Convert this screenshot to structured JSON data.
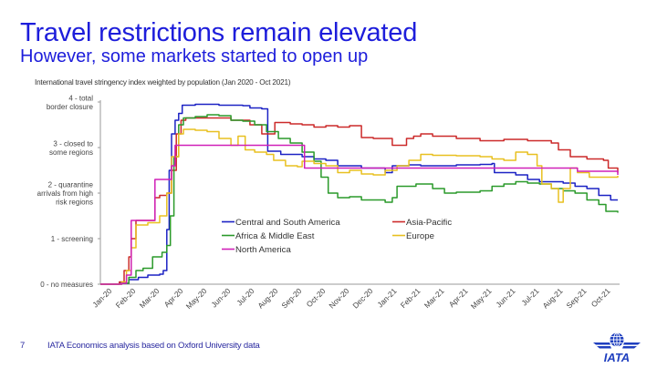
{
  "slide": {
    "title": "Travel restrictions remain elevated",
    "subtitle": "However, some markets started to open up",
    "page_number": "7",
    "source": "IATA Economics analysis based on Oxford University data",
    "logo_text": "IATA",
    "title_color": "#1d1ddb"
  },
  "chart_data": {
    "type": "line",
    "title": "International travel stringency index weighted by population (Jan 2020 - Oct 2021)",
    "xlabel": "",
    "ylabel": "",
    "ylim": [
      0,
      4
    ],
    "grid": false,
    "legend_position": "center",
    "y_ticks": [
      {
        "value": 4,
        "lines": [
          "4 - total",
          "border closure"
        ]
      },
      {
        "value": 3,
        "lines": [
          "3 - closed to",
          "some regions"
        ]
      },
      {
        "value": 2,
        "lines": [
          "2 - quarantine",
          "arrivals from high",
          "risk regions"
        ]
      },
      {
        "value": 1,
        "lines": [
          "1 - screening"
        ]
      },
      {
        "value": 0,
        "lines": [
          "0 - no measures"
        ]
      }
    ],
    "x_tick_labels": [
      "Jan-20",
      "Feb-20",
      "Mar-20",
      "Apr-20",
      "May-20",
      "Jun-20",
      "Jul-20",
      "Aug-20",
      "Sep-20",
      "Oct-20",
      "Nov-20",
      "Dec-20",
      "Jan-21",
      "Feb-21",
      "Mar-21",
      "Apr-21",
      "May-21",
      "Jun-21",
      "Jul-21",
      "Aug-21",
      "Sep-21",
      "Oct-21"
    ],
    "x_unit": "months since Jan 2020",
    "xlim": [
      0,
      21.8
    ],
    "series": [
      {
        "name": "Central and South America",
        "color": "#1c22c4",
        "points": [
          [
            0,
            0
          ],
          [
            0.8,
            0.02
          ],
          [
            1.2,
            0.1
          ],
          [
            1.6,
            0.15
          ],
          [
            2,
            0.2
          ],
          [
            2.5,
            0.22
          ],
          [
            2.65,
            0.3
          ],
          [
            2.8,
            1.2
          ],
          [
            2.9,
            2.5
          ],
          [
            3.0,
            3.3
          ],
          [
            3.15,
            3.6
          ],
          [
            3.3,
            3.75
          ],
          [
            3.45,
            3.93
          ],
          [
            4,
            3.95
          ],
          [
            5,
            3.93
          ],
          [
            6,
            3.92
          ],
          [
            6.3,
            3.87
          ],
          [
            6.8,
            3.85
          ],
          [
            7.0,
            3.85
          ],
          [
            7.05,
            2.92
          ],
          [
            7.5,
            2.92
          ],
          [
            7.6,
            2.85
          ],
          [
            8.5,
            2.8
          ],
          [
            9.0,
            2.75
          ],
          [
            9.5,
            2.72
          ],
          [
            10,
            2.6
          ],
          [
            11,
            2.55
          ],
          [
            12,
            2.45
          ],
          [
            12.3,
            2.6
          ],
          [
            13,
            2.62
          ],
          [
            13.5,
            2.6
          ],
          [
            14,
            2.6
          ],
          [
            15,
            2.62
          ],
          [
            16,
            2.63
          ],
          [
            16.5,
            2.65
          ],
          [
            16.6,
            2.45
          ],
          [
            17,
            2.45
          ],
          [
            17.5,
            2.4
          ],
          [
            18,
            2.3
          ],
          [
            18.5,
            2.25
          ],
          [
            19,
            2.25
          ],
          [
            19.5,
            2.22
          ],
          [
            20,
            2.15
          ],
          [
            20.5,
            2.1
          ],
          [
            21,
            1.95
          ],
          [
            21.5,
            1.85
          ],
          [
            21.8,
            1.85
          ]
        ]
      },
      {
        "name": "Asia-Pacific",
        "color": "#cc2a2a",
        "points": [
          [
            0,
            0
          ],
          [
            0.8,
            0.05
          ],
          [
            1.0,
            0.3
          ],
          [
            1.2,
            0.6
          ],
          [
            1.3,
            1.0
          ],
          [
            1.5,
            1.4
          ],
          [
            2.0,
            1.4
          ],
          [
            2.3,
            1.9
          ],
          [
            2.5,
            1.95
          ],
          [
            2.8,
            2.0
          ],
          [
            3.0,
            2.5
          ],
          [
            3.2,
            3.3
          ],
          [
            3.4,
            3.6
          ],
          [
            3.6,
            3.65
          ],
          [
            4.5,
            3.65
          ],
          [
            5.5,
            3.6
          ],
          [
            6.3,
            3.5
          ],
          [
            6.8,
            3.3
          ],
          [
            7.3,
            3.3
          ],
          [
            7.35,
            3.55
          ],
          [
            8,
            3.52
          ],
          [
            8.5,
            3.5
          ],
          [
            9.0,
            3.45
          ],
          [
            9.5,
            3.48
          ],
          [
            10,
            3.45
          ],
          [
            10.5,
            3.48
          ],
          [
            11,
            3.22
          ],
          [
            11.5,
            3.2
          ],
          [
            12,
            3.2
          ],
          [
            12.3,
            3.05
          ],
          [
            12.8,
            3.05
          ],
          [
            12.9,
            3.2
          ],
          [
            13.2,
            3.25
          ],
          [
            13.5,
            3.3
          ],
          [
            14,
            3.25
          ],
          [
            15,
            3.2
          ],
          [
            16,
            3.15
          ],
          [
            17,
            3.18
          ],
          [
            18,
            3.15
          ],
          [
            19,
            3.1
          ],
          [
            19.3,
            2.95
          ],
          [
            19.6,
            2.95
          ],
          [
            19.8,
            2.8
          ],
          [
            20.5,
            2.75
          ],
          [
            21.2,
            2.72
          ],
          [
            21.4,
            2.55
          ],
          [
            21.8,
            2.45
          ]
        ]
      },
      {
        "name": "Africa & Middle East",
        "color": "#2a9a2a",
        "points": [
          [
            0,
            0
          ],
          [
            0.9,
            0.02
          ],
          [
            1.2,
            0.15
          ],
          [
            1.5,
            0.3
          ],
          [
            1.8,
            0.35
          ],
          [
            2.2,
            0.6
          ],
          [
            2.6,
            0.7
          ],
          [
            2.8,
            0.85
          ],
          [
            2.95,
            1.5
          ],
          [
            3.1,
            2.8
          ],
          [
            3.3,
            3.5
          ],
          [
            3.5,
            3.65
          ],
          [
            4,
            3.68
          ],
          [
            4.5,
            3.72
          ],
          [
            5,
            3.7
          ],
          [
            5.5,
            3.6
          ],
          [
            6,
            3.58
          ],
          [
            6.5,
            3.5
          ],
          [
            7.0,
            3.35
          ],
          [
            7.5,
            3.2
          ],
          [
            8,
            3.1
          ],
          [
            8.5,
            2.9
          ],
          [
            9,
            2.7
          ],
          [
            9.3,
            2.35
          ],
          [
            9.6,
            2.0
          ],
          [
            10,
            1.9
          ],
          [
            10.5,
            1.92
          ],
          [
            11,
            1.85
          ],
          [
            11.5,
            1.85
          ],
          [
            12,
            1.8
          ],
          [
            12.3,
            1.9
          ],
          [
            12.5,
            2.15
          ],
          [
            13,
            2.15
          ],
          [
            13.3,
            2.2
          ],
          [
            14,
            2.1
          ],
          [
            14.5,
            2.0
          ],
          [
            15,
            2.02
          ],
          [
            16,
            2.05
          ],
          [
            16.5,
            2.15
          ],
          [
            17,
            2.2
          ],
          [
            17.5,
            2.25
          ],
          [
            18,
            2.22
          ],
          [
            18.5,
            2.2
          ],
          [
            19,
            2.1
          ],
          [
            19.5,
            2.05
          ],
          [
            20,
            2.0
          ],
          [
            20.5,
            1.85
          ],
          [
            21,
            1.75
          ],
          [
            21.3,
            1.6
          ],
          [
            21.8,
            1.57
          ]
        ]
      },
      {
        "name": "Europe",
        "color": "#e8c020",
        "points": [
          [
            0,
            0
          ],
          [
            0.9,
            0.05
          ],
          [
            1.1,
            0.3
          ],
          [
            1.3,
            0.8
          ],
          [
            1.5,
            1.3
          ],
          [
            2.0,
            1.35
          ],
          [
            2.5,
            1.5
          ],
          [
            2.8,
            2.0
          ],
          [
            3.0,
            2.8
          ],
          [
            3.3,
            3.3
          ],
          [
            3.5,
            3.4
          ],
          [
            4,
            3.38
          ],
          [
            4.5,
            3.35
          ],
          [
            5,
            3.2
          ],
          [
            5.5,
            3.05
          ],
          [
            5.8,
            3.25
          ],
          [
            6.1,
            2.95
          ],
          [
            6.5,
            2.9
          ],
          [
            7,
            2.85
          ],
          [
            7.3,
            2.72
          ],
          [
            7.8,
            2.6
          ],
          [
            8.3,
            2.58
          ],
          [
            8.5,
            2.7
          ],
          [
            9,
            2.65
          ],
          [
            9.5,
            2.6
          ],
          [
            10,
            2.45
          ],
          [
            10.5,
            2.5
          ],
          [
            11,
            2.42
          ],
          [
            11.5,
            2.4
          ],
          [
            12,
            2.5
          ],
          [
            12.5,
            2.6
          ],
          [
            13,
            2.72
          ],
          [
            13.5,
            2.85
          ],
          [
            14,
            2.83
          ],
          [
            15,
            2.82
          ],
          [
            16,
            2.8
          ],
          [
            16.5,
            2.75
          ],
          [
            17,
            2.72
          ],
          [
            17.5,
            2.9
          ],
          [
            18,
            2.85
          ],
          [
            18.4,
            2.6
          ],
          [
            18.6,
            2.2
          ],
          [
            19,
            2.1
          ],
          [
            19.3,
            1.8
          ],
          [
            19.5,
            2.1
          ],
          [
            19.8,
            2.55
          ],
          [
            20.1,
            2.45
          ],
          [
            20.6,
            2.35
          ],
          [
            21.2,
            2.35
          ],
          [
            21.8,
            2.38
          ]
        ]
      },
      {
        "name": "North America",
        "color": "#d020b8",
        "points": [
          [
            0,
            0
          ],
          [
            0.9,
            0.02
          ],
          [
            1.1,
            0.2
          ],
          [
            1.3,
            1.4
          ],
          [
            2.0,
            1.4
          ],
          [
            2.3,
            2.3
          ],
          [
            2.8,
            2.3
          ],
          [
            3.0,
            2.6
          ],
          [
            3.15,
            3.05
          ],
          [
            4,
            3.05
          ],
          [
            5,
            3.05
          ],
          [
            6,
            3.05
          ],
          [
            7,
            3.05
          ],
          [
            8,
            3.05
          ],
          [
            8.55,
            3.05
          ],
          [
            8.6,
            2.55
          ],
          [
            10,
            2.55
          ],
          [
            12,
            2.55
          ],
          [
            14,
            2.55
          ],
          [
            16,
            2.55
          ],
          [
            18,
            2.55
          ],
          [
            19.5,
            2.55
          ],
          [
            20,
            2.55
          ],
          [
            20.1,
            2.48
          ],
          [
            21.5,
            2.48
          ],
          [
            21.8,
            2.4
          ]
        ]
      }
    ]
  }
}
